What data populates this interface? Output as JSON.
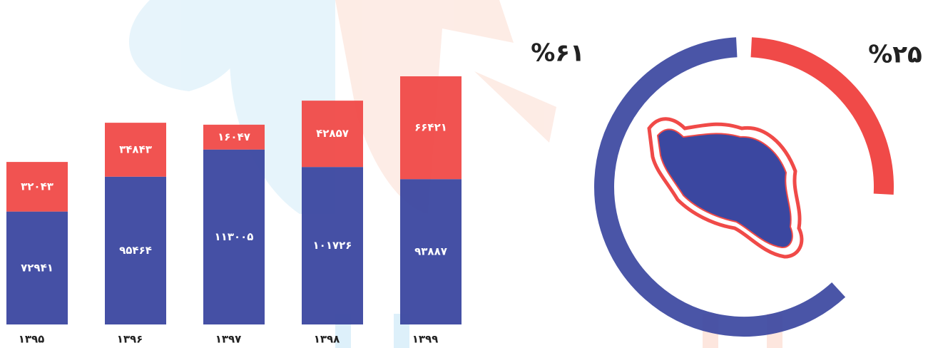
{
  "chart_data": [
    {
      "type": "stacked-bar",
      "categories": [
        "۱۳۹۵",
        "۱۳۹۶",
        "۱۳۹۷",
        "۱۳۹۸",
        "۱۳۹۹"
      ],
      "series": [
        {
          "color": "#3b47a0",
          "values": [
            72941,
            95464,
            113005,
            101726,
            93887
          ],
          "value_labels": [
            "۷۲۹۴۱",
            "۹۵۴۶۴",
            "۱۱۳۰۰۵",
            "۱۰۱۷۲۶",
            "۹۳۸۸۷"
          ]
        },
        {
          "color": "#f04a48",
          "values": [
            32043,
            34843,
            16047,
            42857,
            66421
          ],
          "value_labels": [
            "۳۲۰۴۳",
            "۳۴۸۴۳",
            "۱۶۰۴۷",
            "۴۲۸۵۷",
            "۶۶۴۲۱"
          ]
        }
      ]
    },
    {
      "type": "donut",
      "values": [
        61,
        25
      ],
      "value_labels": [
        "%۶۱",
        "%۲۵"
      ],
      "colors": [
        "#3b47a0",
        "#f04a48"
      ]
    }
  ]
}
